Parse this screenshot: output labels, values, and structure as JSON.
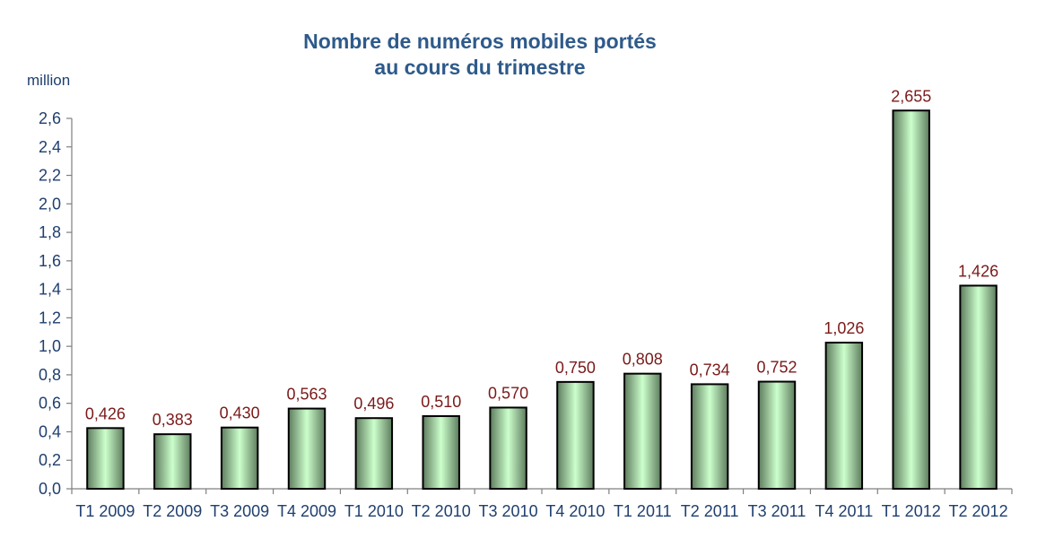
{
  "chart_data": {
    "type": "bar",
    "title_line1": "Nombre de numéros mobiles portés",
    "title_line2": "au cours du trimestre",
    "unit_label": "million",
    "ylim": [
      0,
      2.6
    ],
    "ytick_step": 0.2,
    "yticks": [
      "0,0",
      "0,2",
      "0,4",
      "0,6",
      "0,8",
      "1,0",
      "1,2",
      "1,4",
      "1,6",
      "1,8",
      "2,0",
      "2,2",
      "2,4",
      "2,6"
    ],
    "categories": [
      "T1 2009",
      "T2 2009",
      "T3 2009",
      "T4 2009",
      "T1 2010",
      "T2 2010",
      "T3 2010",
      "T4 2010",
      "T1 2011",
      "T2 2011",
      "T3 2011",
      "T4 2011",
      "T1 2012",
      "T2 2012"
    ],
    "values": [
      0.426,
      0.383,
      0.43,
      0.563,
      0.496,
      0.51,
      0.57,
      0.75,
      0.808,
      0.734,
      0.752,
      1.026,
      2.655,
      1.426
    ],
    "value_labels": [
      "0,426",
      "0,383",
      "0,430",
      "0,563",
      "0,496",
      "0,510",
      "0,570",
      "0,750",
      "0,808",
      "0,734",
      "0,752",
      "1,026",
      "2,655",
      "1,426"
    ],
    "colors": {
      "bar_mid": "#ccffcc",
      "bar_edge": "#5e7c5e",
      "bar_stroke": "#000000",
      "axis": "#7f7f7f",
      "title": "#2e5a8a",
      "tick": "#1f3f6e",
      "data_label": "#7a1a1a"
    }
  }
}
